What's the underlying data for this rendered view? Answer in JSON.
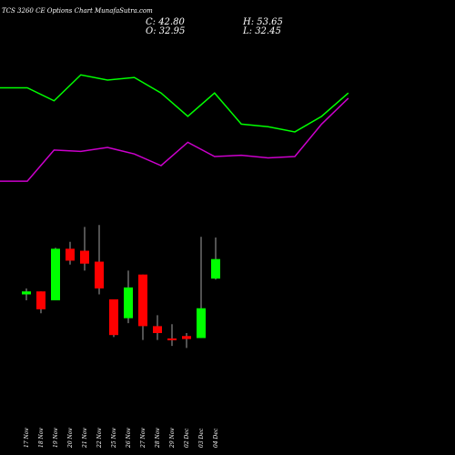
{
  "header": {
    "title": "TCS 3260  CE Options  Chart MunafaSutra.com",
    "close": "C: 42.80",
    "open": "O: 32.95",
    "high": "H: 53.65",
    "low": "L: 32.45"
  },
  "colors": {
    "background": "#000000",
    "upper_band": "#00ff00",
    "lower_band": "#cc00cc",
    "bull": "#00ff00",
    "bear": "#ff0000",
    "text": "#ffffff"
  },
  "chart_data": {
    "type": "candlestick",
    "grid": false,
    "legend": "none",
    "x": [
      "17 Nov",
      "18 Nov",
      "19 Nov",
      "20 Nov",
      "21 Nov",
      "22 Nov",
      "25 Nov",
      "26 Nov",
      "27 Nov",
      "28 Nov",
      "29 Nov",
      "02 Dec",
      "03 Dec",
      "04 Dec"
    ],
    "series": [
      {
        "type": "candlestick",
        "ohlc": [
          {
            "o": 25.0,
            "h": 28.0,
            "l": 22.0,
            "c": 26.5
          },
          {
            "o": 26.5,
            "h": 26.5,
            "l": 15.5,
            "c": 17.5
          },
          {
            "o": 22.0,
            "h": 48.5,
            "l": 22.0,
            "c": 48.0
          },
          {
            "o": 48.0,
            "h": 51.5,
            "l": 40.0,
            "c": 42.0
          },
          {
            "o": 47.0,
            "h": 59.0,
            "l": 37.0,
            "c": 40.5
          },
          {
            "o": 41.5,
            "h": 60.0,
            "l": 25.0,
            "c": 28.0
          },
          {
            "o": 22.5,
            "h": 22.5,
            "l": 3.5,
            "c": 4.5
          },
          {
            "o": 13.0,
            "h": 37.0,
            "l": 10.5,
            "c": 28.5
          },
          {
            "o": 35.0,
            "h": 35.0,
            "l": 2.0,
            "c": 9.0
          },
          {
            "o": 9.0,
            "h": 14.5,
            "l": 2.0,
            "c": 5.5
          },
          {
            "o": 2.8,
            "h": 10.0,
            "l": -1.0,
            "c": 2.5
          },
          {
            "o": 4.0,
            "h": 5.5,
            "l": -2.0,
            "c": 2.5
          },
          {
            "o": 3.0,
            "h": 54.0,
            "l": 3.0,
            "c": 18.0
          },
          {
            "o": 32.95,
            "h": 53.65,
            "l": 32.45,
            "c": 42.8
          }
        ]
      },
      {
        "type": "line",
        "values": [
          3.0,
          3.0,
          2.5,
          3.5,
          3.3,
          3.4,
          2.8,
          1.9,
          2.8,
          1.6,
          1.5,
          1.3,
          1.9,
          2.8
        ]
      },
      {
        "type": "line",
        "values": [
          -0.6,
          -0.6,
          0.6,
          0.55,
          0.7,
          0.45,
          0.0,
          0.9,
          0.35,
          0.4,
          0.3,
          0.35,
          1.6,
          2.6
        ]
      }
    ]
  }
}
